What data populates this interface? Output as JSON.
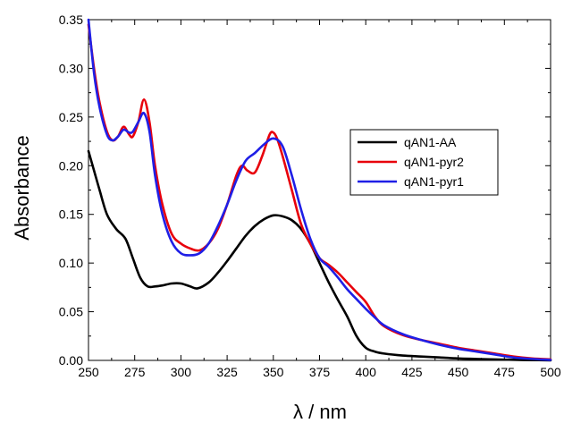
{
  "chart_data": {
    "type": "line",
    "xlabel": "λ / nm",
    "ylabel": "Absorbance",
    "xlim": [
      250,
      500
    ],
    "ylim": [
      0,
      0.35
    ],
    "x_ticks": [
      "250",
      "275",
      "300",
      "325",
      "350",
      "375",
      "400",
      "425",
      "450",
      "475",
      "500"
    ],
    "y_ticks": [
      "0.00",
      "0.05",
      "0.10",
      "0.15",
      "0.20",
      "0.25",
      "0.30",
      "0.35"
    ],
    "grid": false,
    "legend_position": "right",
    "series": [
      {
        "name": "qAN1-AA",
        "color": "#000000",
        "x": [
          250,
          253,
          256,
          260,
          265,
          270,
          274,
          278,
          282,
          286,
          290,
          295,
          300,
          305,
          309,
          315,
          320,
          325,
          330,
          335,
          340,
          345,
          350,
          355,
          360,
          365,
          370,
          375,
          380,
          385,
          390,
          395,
          400,
          405,
          410,
          420,
          430,
          440,
          450,
          460,
          470,
          480,
          490,
          500
        ],
        "y": [
          0.215,
          0.195,
          0.175,
          0.15,
          0.135,
          0.125,
          0.105,
          0.085,
          0.076,
          0.076,
          0.077,
          0.079,
          0.079,
          0.076,
          0.074,
          0.08,
          0.09,
          0.102,
          0.115,
          0.128,
          0.138,
          0.145,
          0.149,
          0.148,
          0.144,
          0.135,
          0.12,
          0.1,
          0.08,
          0.062,
          0.045,
          0.025,
          0.013,
          0.009,
          0.007,
          0.005,
          0.004,
          0.003,
          0.002,
          0.0015,
          0.001,
          0.0006,
          0.0003,
          0.0001
        ]
      },
      {
        "name": "qAN1-pyr2",
        "color": "#e8000b",
        "x": [
          250,
          253,
          256,
          260,
          263,
          266,
          269,
          272,
          274,
          277,
          280,
          283,
          286,
          290,
          295,
          300,
          305,
          310,
          315,
          320,
          325,
          330,
          333,
          336,
          340,
          344,
          348,
          350,
          352,
          355,
          360,
          365,
          370,
          375,
          380,
          385,
          390,
          395,
          400,
          405,
          410,
          420,
          430,
          440,
          450,
          460,
          470,
          480,
          490,
          500
        ],
        "y": [
          0.345,
          0.3,
          0.265,
          0.235,
          0.226,
          0.23,
          0.24,
          0.232,
          0.23,
          0.245,
          0.268,
          0.245,
          0.2,
          0.16,
          0.13,
          0.12,
          0.115,
          0.113,
          0.12,
          0.135,
          0.16,
          0.19,
          0.2,
          0.195,
          0.193,
          0.21,
          0.232,
          0.234,
          0.228,
          0.21,
          0.175,
          0.14,
          0.12,
          0.105,
          0.098,
          0.09,
          0.08,
          0.07,
          0.06,
          0.045,
          0.035,
          0.026,
          0.021,
          0.017,
          0.013,
          0.01,
          0.007,
          0.004,
          0.002,
          0.001
        ]
      },
      {
        "name": "qAN1-pyr1",
        "color": "#1f1fe6",
        "x": [
          250,
          253,
          256,
          260,
          263,
          266,
          269,
          272,
          274,
          277,
          280,
          283,
          286,
          290,
          295,
          300,
          305,
          310,
          315,
          320,
          325,
          330,
          335,
          340,
          345,
          350,
          355,
          360,
          365,
          370,
          375,
          380,
          385,
          390,
          395,
          400,
          405,
          410,
          420,
          430,
          440,
          450,
          460,
          470,
          480,
          490,
          500
        ],
        "y": [
          0.35,
          0.295,
          0.26,
          0.232,
          0.226,
          0.23,
          0.237,
          0.234,
          0.235,
          0.245,
          0.254,
          0.235,
          0.19,
          0.15,
          0.122,
          0.11,
          0.108,
          0.11,
          0.12,
          0.138,
          0.16,
          0.185,
          0.205,
          0.213,
          0.222,
          0.228,
          0.22,
          0.19,
          0.155,
          0.125,
          0.105,
          0.096,
          0.085,
          0.073,
          0.063,
          0.053,
          0.044,
          0.036,
          0.027,
          0.021,
          0.016,
          0.012,
          0.009,
          0.006,
          0.003,
          0.0015,
          0.0005
        ]
      }
    ]
  }
}
